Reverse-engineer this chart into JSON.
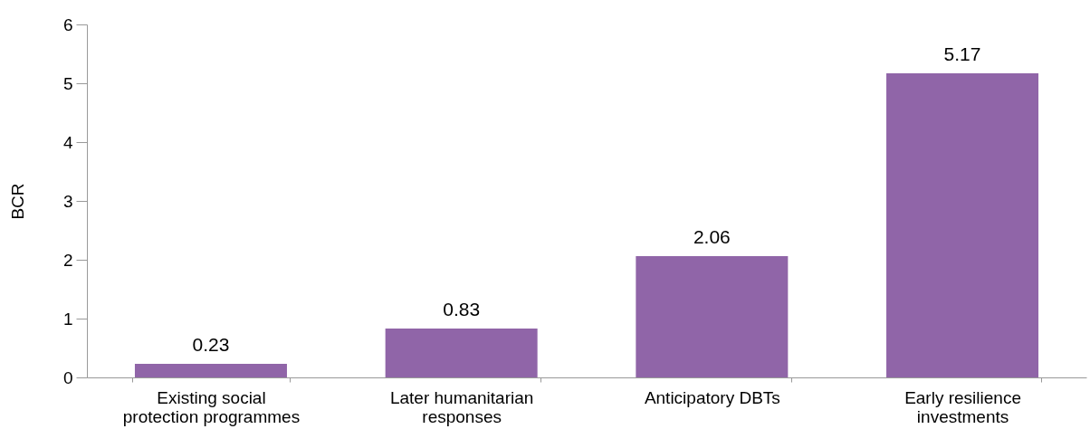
{
  "chart_data": {
    "type": "bar",
    "ylabel": "BCR",
    "categories": [
      "Existing social protection programmes",
      "Later humanitarian responses",
      "Anticipatory DBTs",
      "Early resilience investments"
    ],
    "values": [
      0.23,
      0.83,
      2.06,
      5.17
    ],
    "color": "#9065a8",
    "ylim": [
      0,
      6
    ],
    "yticks": [
      0,
      1,
      2,
      3,
      4,
      5,
      6
    ],
    "grid": false,
    "data_labels": true
  }
}
